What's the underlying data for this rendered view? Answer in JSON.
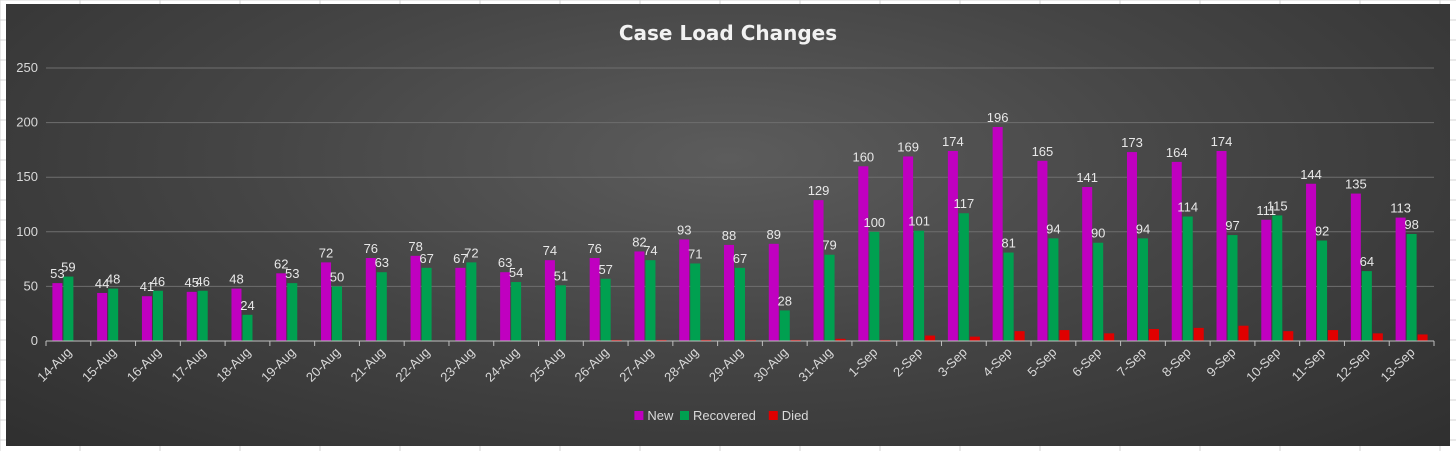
{
  "chart_data": {
    "type": "bar",
    "title": "Case Load Changes",
    "xlabel": "",
    "ylabel": "",
    "ylim": [
      0,
      250
    ],
    "yticks": [
      0,
      50,
      100,
      150,
      200,
      250
    ],
    "grid": true,
    "legend_position": "bottom",
    "categories": [
      "14-Aug",
      "15-Aug",
      "16-Aug",
      "17-Aug",
      "18-Aug",
      "19-Aug",
      "20-Aug",
      "21-Aug",
      "22-Aug",
      "23-Aug",
      "24-Aug",
      "25-Aug",
      "26-Aug",
      "27-Aug",
      "28-Aug",
      "29-Aug",
      "30-Aug",
      "31-Aug",
      "1-Sep",
      "2-Sep",
      "3-Sep",
      "4-Sep",
      "5-Sep",
      "6-Sep",
      "7-Sep",
      "8-Sep",
      "9-Sep",
      "10-Sep",
      "11-Sep",
      "12-Sep",
      "13-Sep"
    ],
    "series": [
      {
        "name": "New",
        "color": "#c000c0",
        "show_labels": true,
        "values": [
          53,
          44,
          41,
          45,
          48,
          62,
          72,
          76,
          78,
          67,
          63,
          74,
          76,
          82,
          93,
          88,
          89,
          129,
          160,
          169,
          174,
          196,
          165,
          141,
          173,
          164,
          174,
          111,
          144,
          135,
          113
        ]
      },
      {
        "name": "Recovered",
        "color": "#00a050",
        "show_labels": true,
        "values": [
          59,
          48,
          46,
          46,
          24,
          53,
          50,
          63,
          67,
          72,
          54,
          51,
          57,
          74,
          71,
          67,
          28,
          79,
          100,
          101,
          117,
          81,
          94,
          90,
          94,
          114,
          97,
          115,
          92,
          64,
          98
        ]
      },
      {
        "name": "Died",
        "color": "#e00000",
        "show_labels": false,
        "values": [
          0,
          0,
          0,
          0,
          0,
          0,
          0,
          0,
          0,
          0,
          0,
          0,
          1,
          1,
          1,
          1,
          1,
          2,
          1,
          5,
          4,
          9,
          10,
          7,
          11,
          12,
          14,
          9,
          10,
          7,
          6
        ]
      }
    ]
  }
}
